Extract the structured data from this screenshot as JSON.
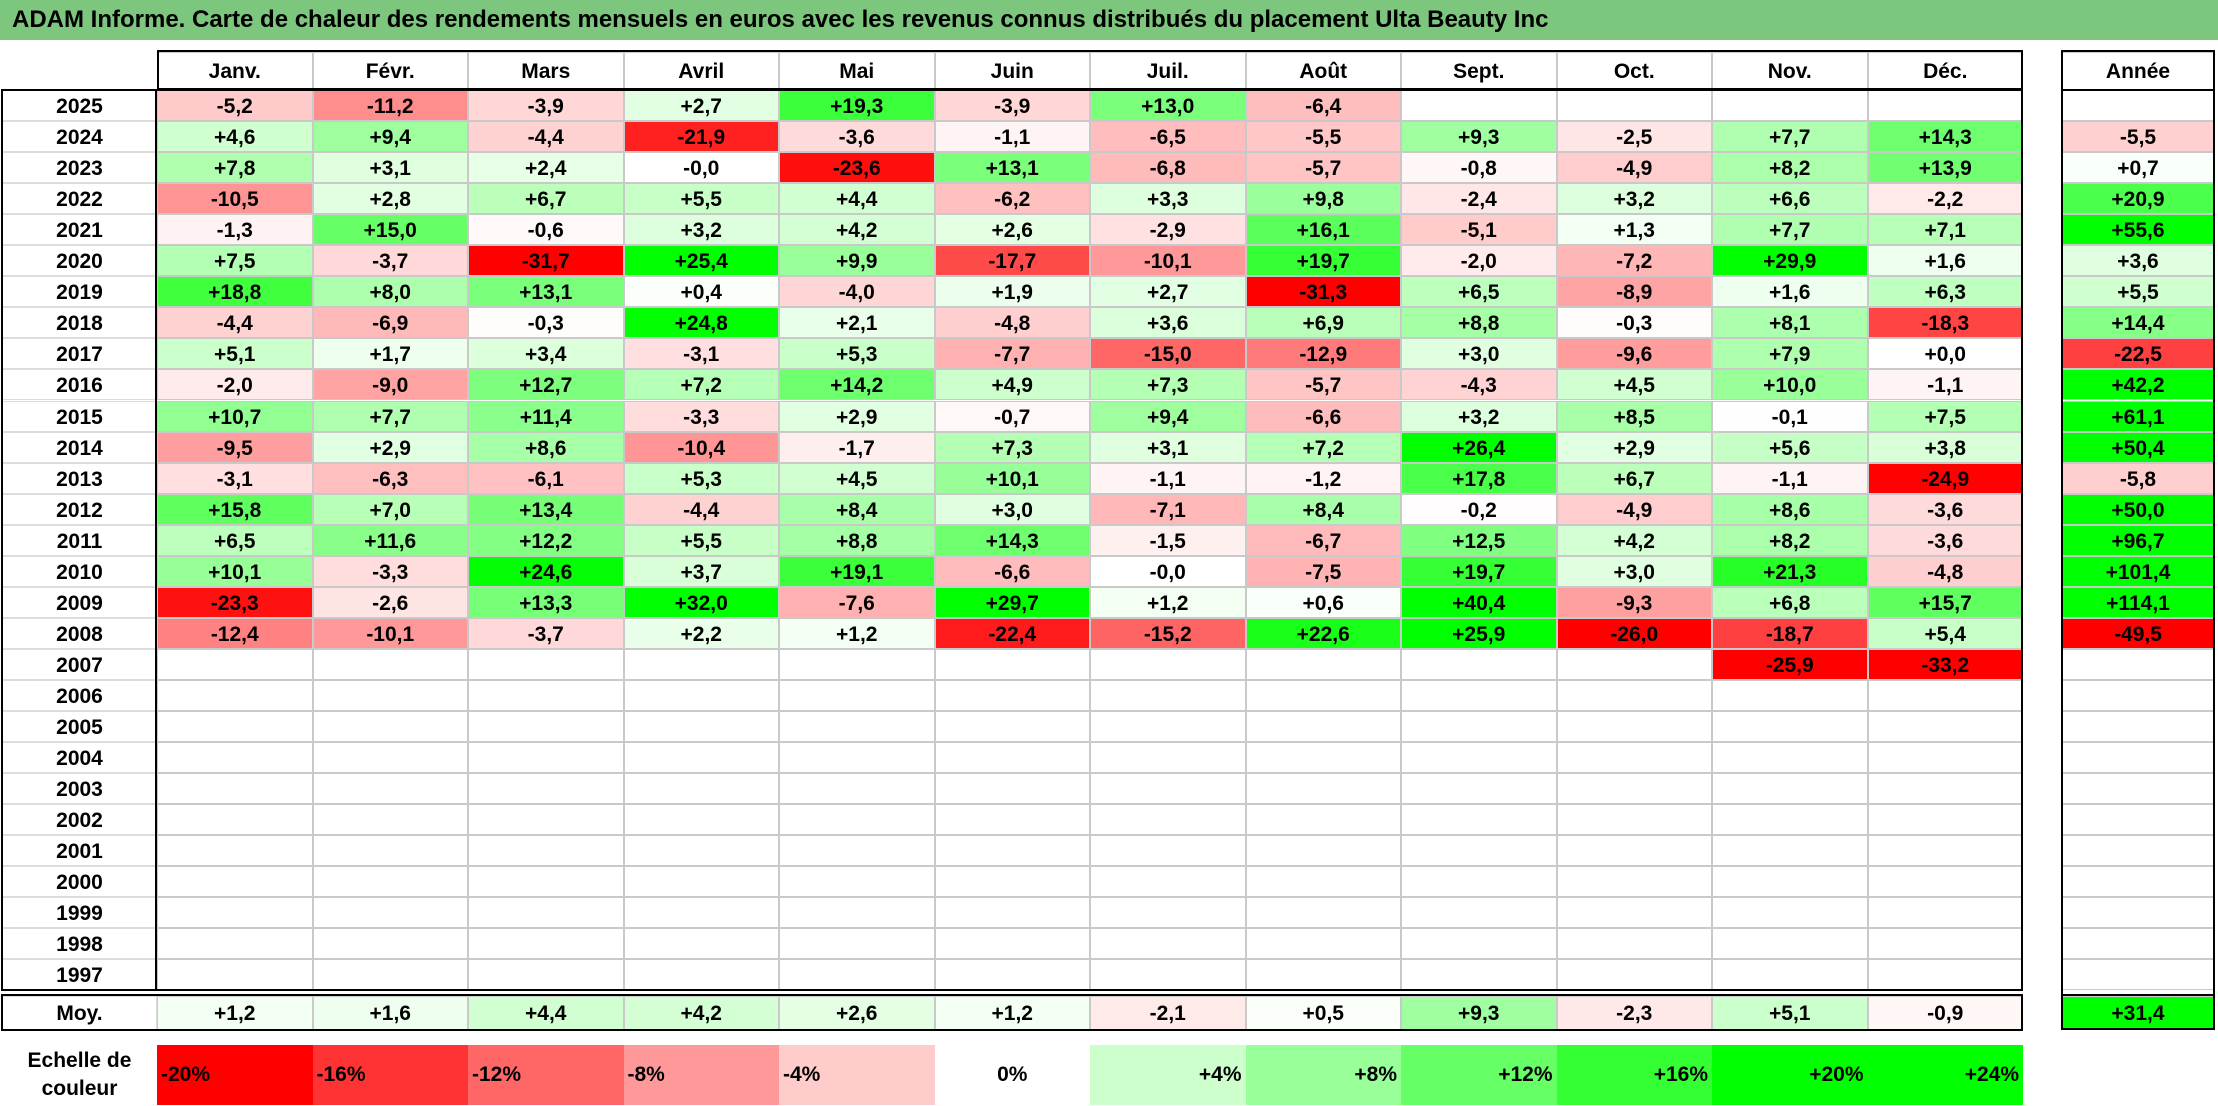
{
  "title": "ADAM Informe. Carte de chaleur des rendements mensuels en euros avec les revenus connus distribués du placement Ulta Beauty Inc",
  "chart_data": {
    "type": "heatmap",
    "title": "ADAM Informe. Carte de chaleur des rendements mensuels en euros avec les revenus connus distribués du placement Ulta Beauty Inc",
    "columns": [
      "Janv.",
      "Févr.",
      "Mars",
      "Avril",
      "Mai",
      "Juin",
      "Juil.",
      "Août",
      "Sept.",
      "Oct.",
      "Nov.",
      "Déc."
    ],
    "year_label": "Année",
    "years": [
      "2025",
      "2024",
      "2023",
      "2022",
      "2021",
      "2020",
      "2019",
      "2018",
      "2017",
      "2016",
      "2015",
      "2014",
      "2013",
      "2012",
      "2011",
      "2010",
      "2009",
      "2008",
      "2007",
      "2006",
      "2005",
      "2004",
      "2003",
      "2002",
      "2001",
      "2000",
      "1999",
      "1998",
      "1997"
    ],
    "values": [
      [
        "-5,2",
        "-11,2",
        "-3,9",
        "+2,7",
        "+19,3",
        "-3,9",
        "+13,0",
        "-6,4",
        "",
        "",
        "",
        ""
      ],
      [
        "+4,6",
        "+9,4",
        "-4,4",
        "-21,9",
        "-3,6",
        "-1,1",
        "-6,5",
        "-5,5",
        "+9,3",
        "-2,5",
        "+7,7",
        "+14,3"
      ],
      [
        "+7,8",
        "+3,1",
        "+2,4",
        "-0,0",
        "-23,6",
        "+13,1",
        "-6,8",
        "-5,7",
        "-0,8",
        "-4,9",
        "+8,2",
        "+13,9"
      ],
      [
        "-10,5",
        "+2,8",
        "+6,7",
        "+5,5",
        "+4,4",
        "-6,2",
        "+3,3",
        "+9,8",
        "-2,4",
        "+3,2",
        "+6,6",
        "-2,2"
      ],
      [
        "-1,3",
        "+15,0",
        "-0,6",
        "+3,2",
        "+4,2",
        "+2,6",
        "-2,9",
        "+16,1",
        "-5,1",
        "+1,3",
        "+7,7",
        "+7,1"
      ],
      [
        "+7,5",
        "-3,7",
        "-31,7",
        "+25,4",
        "+9,9",
        "-17,7",
        "-10,1",
        "+19,7",
        "-2,0",
        "-7,2",
        "+29,9",
        "+1,6"
      ],
      [
        "+18,8",
        "+8,0",
        "+13,1",
        "+0,4",
        "-4,0",
        "+1,9",
        "+2,7",
        "-31,3",
        "+6,5",
        "-8,9",
        "+1,6",
        "+6,3"
      ],
      [
        "-4,4",
        "-6,9",
        "-0,3",
        "+24,8",
        "+2,1",
        "-4,8",
        "+3,6",
        "+6,9",
        "+8,8",
        "-0,3",
        "+8,1",
        "-18,3"
      ],
      [
        "+5,1",
        "+1,7",
        "+3,4",
        "-3,1",
        "+5,3",
        "-7,7",
        "-15,0",
        "-12,9",
        "+3,0",
        "-9,6",
        "+7,9",
        "+0,0"
      ],
      [
        "-2,0",
        "-9,0",
        "+12,7",
        "+7,2",
        "+14,2",
        "+4,9",
        "+7,3",
        "-5,7",
        "-4,3",
        "+4,5",
        "+10,0",
        "-1,1"
      ],
      [
        "+10,7",
        "+7,7",
        "+11,4",
        "-3,3",
        "+2,9",
        "-0,7",
        "+9,4",
        "-6,6",
        "+3,2",
        "+8,5",
        "-0,1",
        "+7,5"
      ],
      [
        "-9,5",
        "+2,9",
        "+8,6",
        "-10,4",
        "-1,7",
        "+7,3",
        "+3,1",
        "+7,2",
        "+26,4",
        "+2,9",
        "+5,6",
        "+3,8"
      ],
      [
        "-3,1",
        "-6,3",
        "-6,1",
        "+5,3",
        "+4,5",
        "+10,1",
        "-1,1",
        "-1,2",
        "+17,8",
        "+6,7",
        "-1,1",
        "-24,9"
      ],
      [
        "+15,8",
        "+7,0",
        "+13,4",
        "-4,4",
        "+8,4",
        "+3,0",
        "-7,1",
        "+8,4",
        "-0,2",
        "-4,9",
        "+8,6",
        "-3,6"
      ],
      [
        "+6,5",
        "+11,6",
        "+12,2",
        "+5,5",
        "+8,8",
        "+14,3",
        "-1,5",
        "-6,7",
        "+12,5",
        "+4,2",
        "+8,2",
        "-3,6"
      ],
      [
        "+10,1",
        "-3,3",
        "+24,6",
        "+3,7",
        "+19,1",
        "-6,6",
        "-0,0",
        "-7,5",
        "+19,7",
        "+3,0",
        "+21,3",
        "-4,8"
      ],
      [
        "-23,3",
        "-2,6",
        "+13,3",
        "+32,0",
        "-7,6",
        "+29,7",
        "+1,2",
        "+0,6",
        "+40,4",
        "-9,3",
        "+6,8",
        "+15,7"
      ],
      [
        "-12,4",
        "-10,1",
        "-3,7",
        "+2,2",
        "+1,2",
        "-22,4",
        "-15,2",
        "+22,6",
        "+25,9",
        "-26,0",
        "-18,7",
        "+5,4"
      ],
      [
        "",
        "",
        "",
        "",
        "",
        "",
        "",
        "",
        "",
        "",
        "-25,9",
        "-33,2"
      ],
      [
        "",
        "",
        "",
        "",
        "",
        "",
        "",
        "",
        "",
        "",
        "",
        ""
      ],
      [
        "",
        "",
        "",
        "",
        "",
        "",
        "",
        "",
        "",
        "",
        "",
        ""
      ],
      [
        "",
        "",
        "",
        "",
        "",
        "",
        "",
        "",
        "",
        "",
        "",
        ""
      ],
      [
        "",
        "",
        "",
        "",
        "",
        "",
        "",
        "",
        "",
        "",
        "",
        ""
      ],
      [
        "",
        "",
        "",
        "",
        "",
        "",
        "",
        "",
        "",
        "",
        "",
        ""
      ],
      [
        "",
        "",
        "",
        "",
        "",
        "",
        "",
        "",
        "",
        "",
        "",
        ""
      ],
      [
        "",
        "",
        "",
        "",
        "",
        "",
        "",
        "",
        "",
        "",
        "",
        ""
      ],
      [
        "",
        "",
        "",
        "",
        "",
        "",
        "",
        "",
        "",
        "",
        "",
        ""
      ],
      [
        "",
        "",
        "",
        "",
        "",
        "",
        "",
        "",
        "",
        "",
        "",
        ""
      ],
      [
        "",
        "",
        "",
        "",
        "",
        "",
        "",
        "",
        "",
        "",
        "",
        ""
      ]
    ],
    "annual": [
      "",
      "-5,5",
      "+0,7",
      "+20,9",
      "+55,6",
      "+3,6",
      "+5,5",
      "+14,4",
      "-22,5",
      "+42,2",
      "+61,1",
      "+50,4",
      "-5,8",
      "+50,0",
      "+96,7",
      "+101,4",
      "+114,1",
      "-49,5",
      "",
      "",
      "",
      "",
      "",
      "",
      "",
      "",
      "",
      "",
      ""
    ],
    "average_label": "Moy.",
    "averages": [
      "+1,2",
      "+1,6",
      "+4,4",
      "+4,2",
      "+2,6",
      "+1,2",
      "-2,1",
      "+0,5",
      "+9,3",
      "-2,3",
      "+5,1",
      "-0,9"
    ],
    "average_annual": "+31,4",
    "scale_label": "Echelle de couleur",
    "scale": [
      "-20%",
      "-16%",
      "-12%",
      "-8%",
      "-4%",
      "0%",
      "+4%",
      "+8%",
      "+12%",
      "+16%",
      "+20%",
      "+24%"
    ],
    "colors": {
      "negative_max": "#ff0000",
      "neutral": "#ffffff",
      "positive_max": "#00ff00",
      "title_bar": "#7dc67d"
    }
  }
}
